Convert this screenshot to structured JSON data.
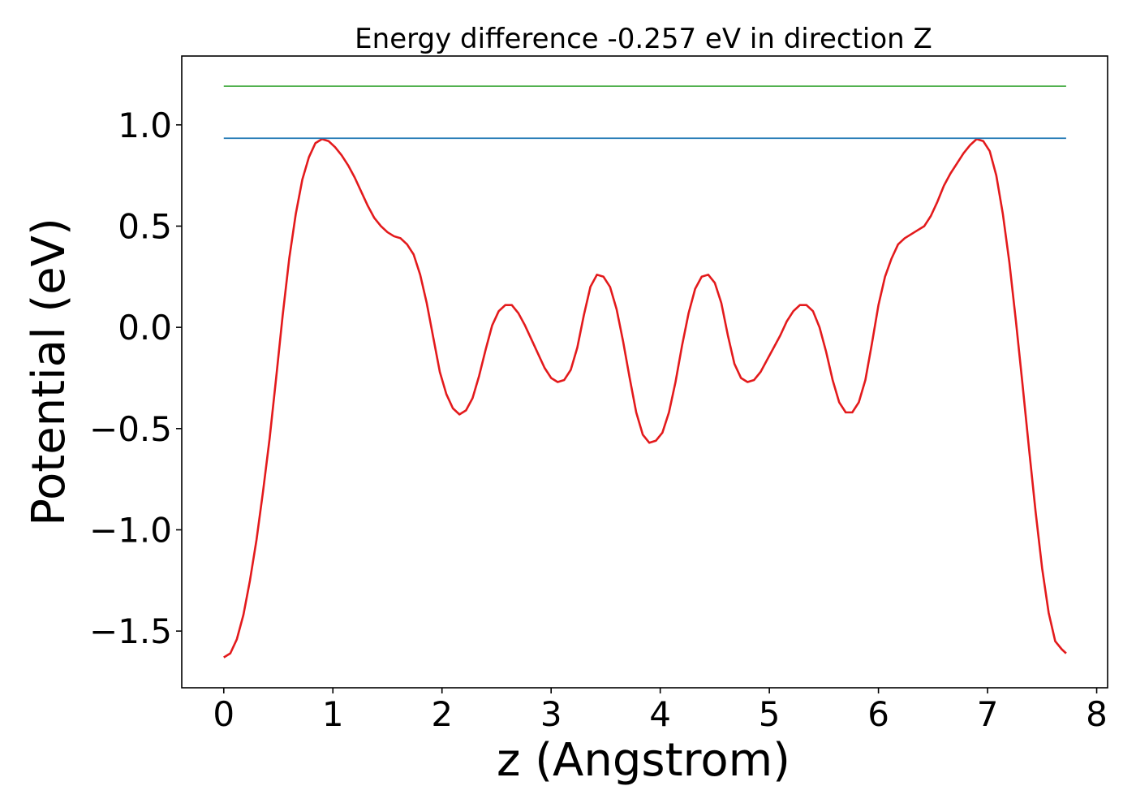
{
  "chart_data": {
    "type": "line",
    "title": "Energy difference -0.257 eV in direction Z",
    "xlabel": "z (Angstrom)",
    "ylabel": "Potential (eV)",
    "xlim": [
      -0.385,
      8.1
    ],
    "ylim": [
      -1.78,
      1.34
    ],
    "xticks": [
      0,
      1,
      2,
      3,
      4,
      5,
      6,
      7,
      8
    ],
    "xtick_labels": [
      "0",
      "1",
      "2",
      "3",
      "4",
      "5",
      "6",
      "7",
      "8"
    ],
    "yticks": [
      -1.5,
      -1.0,
      -0.5,
      0.0,
      0.5,
      1.0
    ],
    "ytick_labels": [
      "−1.5",
      "−1.0",
      "−0.5",
      "0.0",
      "0.5",
      "1.0"
    ],
    "grid": false,
    "legend": "none",
    "series": [
      {
        "color": "#e31a1c",
        "x": [
          0.0,
          0.06,
          0.12,
          0.18,
          0.24,
          0.3,
          0.36,
          0.42,
          0.48,
          0.54,
          0.6,
          0.66,
          0.72,
          0.78,
          0.84,
          0.9,
          0.96,
          1.02,
          1.08,
          1.14,
          1.2,
          1.26,
          1.32,
          1.38,
          1.44,
          1.5,
          1.56,
          1.62,
          1.68,
          1.74,
          1.8,
          1.86,
          1.92,
          1.98,
          2.04,
          2.1,
          2.16,
          2.22,
          2.28,
          2.34,
          2.4,
          2.46,
          2.52,
          2.58,
          2.64,
          2.7,
          2.76,
          2.82,
          2.88,
          2.94,
          3.0,
          3.06,
          3.12,
          3.18,
          3.24,
          3.3,
          3.36,
          3.42,
          3.48,
          3.54,
          3.6,
          3.66,
          3.72,
          3.78,
          3.84,
          3.9,
          3.96,
          4.02,
          4.08,
          4.14,
          4.2,
          4.26,
          4.32,
          4.38,
          4.44,
          4.5,
          4.56,
          4.62,
          4.68,
          4.74,
          4.8,
          4.86,
          4.92,
          4.98,
          5.04,
          5.1,
          5.16,
          5.22,
          5.28,
          5.34,
          5.4,
          5.46,
          5.52,
          5.58,
          5.64,
          5.7,
          5.76,
          5.82,
          5.88,
          5.94,
          6.0,
          6.06,
          6.12,
          6.18,
          6.24,
          6.3,
          6.36,
          6.42,
          6.48,
          6.54,
          6.6,
          6.66,
          6.72,
          6.78,
          6.84,
          6.9,
          6.96,
          7.02,
          7.08,
          7.14,
          7.2,
          7.26,
          7.32,
          7.38,
          7.44,
          7.5,
          7.56,
          7.62,
          7.68,
          7.72
        ],
        "y": [
          -1.63,
          -1.61,
          -1.54,
          -1.42,
          -1.25,
          -1.05,
          -0.81,
          -0.55,
          -0.25,
          0.06,
          0.34,
          0.56,
          0.73,
          0.84,
          0.91,
          0.93,
          0.92,
          0.89,
          0.85,
          0.8,
          0.74,
          0.67,
          0.6,
          0.54,
          0.5,
          0.47,
          0.45,
          0.44,
          0.41,
          0.36,
          0.26,
          0.12,
          -0.05,
          -0.22,
          -0.33,
          -0.4,
          -0.43,
          -0.41,
          -0.35,
          -0.24,
          -0.11,
          0.01,
          0.08,
          0.11,
          0.11,
          0.07,
          0.01,
          -0.06,
          -0.13,
          -0.2,
          -0.25,
          -0.27,
          -0.26,
          -0.21,
          -0.1,
          0.06,
          0.2,
          0.26,
          0.25,
          0.2,
          0.09,
          -0.07,
          -0.25,
          -0.42,
          -0.53,
          -0.57,
          -0.56,
          -0.52,
          -0.42,
          -0.27,
          -0.09,
          0.07,
          0.19,
          0.25,
          0.26,
          0.22,
          0.12,
          -0.04,
          -0.18,
          -0.25,
          -0.27,
          -0.26,
          -0.22,
          -0.16,
          -0.1,
          -0.04,
          0.03,
          0.08,
          0.11,
          0.11,
          0.08,
          0.0,
          -0.12,
          -0.26,
          -0.37,
          -0.42,
          -0.42,
          -0.37,
          -0.26,
          -0.08,
          0.11,
          0.25,
          0.34,
          0.41,
          0.44,
          0.46,
          0.48,
          0.5,
          0.55,
          0.62,
          0.7,
          0.76,
          0.81,
          0.86,
          0.9,
          0.93,
          0.92,
          0.87,
          0.75,
          0.56,
          0.32,
          0.03,
          -0.28,
          -0.6,
          -0.91,
          -1.19,
          -1.41,
          -1.55,
          -1.59,
          -1.61
        ]
      },
      {
        "color": "#1f77b4",
        "x": [
          0.0,
          7.72
        ],
        "y": [
          0.934,
          0.934
        ]
      },
      {
        "color": "#4daf4a",
        "x": [
          0.0,
          7.72
        ],
        "y": [
          1.191,
          1.191
        ]
      }
    ]
  }
}
